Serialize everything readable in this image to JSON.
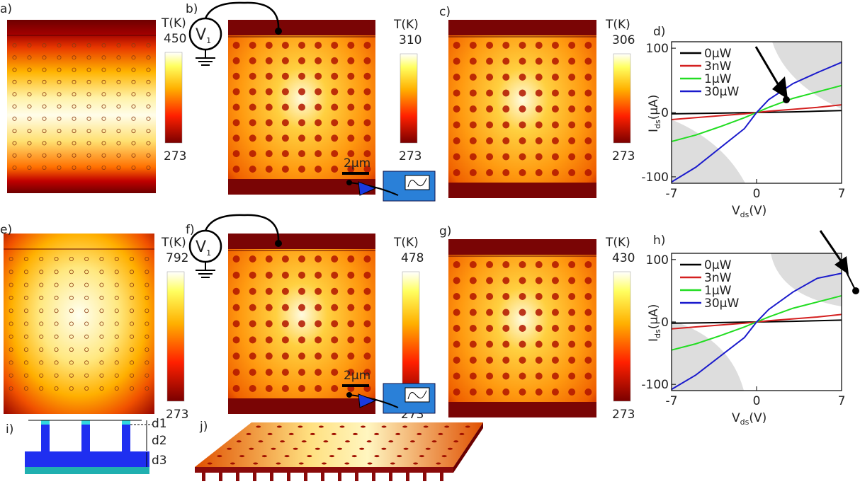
{
  "panels": {
    "labels": [
      "a)",
      "b)",
      "c)",
      "d)",
      "e)",
      "f)",
      "g)",
      "h)",
      "i)",
      "j)"
    ]
  },
  "colorbars": [
    {
      "title": "T(K)",
      "max": 450,
      "min": 273
    },
    {
      "title": "T(K)",
      "max": 310,
      "min": 273
    },
    {
      "title": "T(K)",
      "max": 306,
      "min": 273
    },
    {
      "title": "T(K)",
      "max": 792,
      "min": 273
    },
    {
      "title": "T(K)",
      "max": 478,
      "min": 273
    },
    {
      "title": "T(K)",
      "max": 430,
      "min": 273
    }
  ],
  "circuit": {
    "source": "V",
    "source_sub": "1",
    "scale_bar": "2μm"
  },
  "diagram": {
    "labels": [
      "d1",
      "d2",
      "d3"
    ]
  },
  "chart_data": [
    {
      "type": "line",
      "x": [
        -7,
        -5,
        -3,
        -1,
        0,
        1,
        3,
        5,
        7
      ],
      "series": [
        {
          "name": "0μW",
          "color": "#000000",
          "values": [
            -2,
            -1.5,
            -1,
            -0.3,
            0,
            0.3,
            1,
            2,
            3
          ]
        },
        {
          "name": "3nW",
          "color": "#d42020",
          "values": [
            -11,
            -8,
            -5,
            -2,
            0,
            2,
            5,
            8,
            12
          ]
        },
        {
          "name": "1μW",
          "color": "#22dd22",
          "values": [
            -45,
            -35,
            -22,
            -8,
            0,
            8,
            22,
            32,
            42
          ]
        },
        {
          "name": "30μW",
          "color": "#1a1acc",
          "values": [
            -108,
            -85,
            -55,
            -25,
            0,
            20,
            45,
            62,
            78
          ]
        }
      ],
      "xlim": [
        -7,
        7
      ],
      "xticks": [
        -7,
        0,
        7
      ],
      "ylim": [
        -110,
        110
      ],
      "yticks": [
        -100,
        0,
        100
      ],
      "x_label": {
        "main": "V",
        "sub": "ds",
        "unit": "(V)"
      },
      "y_label": {
        "main": "I",
        "sub": "ds",
        "unit": "(μA)"
      }
    },
    {
      "type": "line",
      "x": [
        -7,
        -5,
        -3,
        -1,
        0,
        1,
        3,
        5,
        7
      ],
      "series": [
        {
          "name": "0μW",
          "color": "#000000",
          "values": [
            -2,
            -1.5,
            -1,
            -0.3,
            0,
            0.3,
            1,
            2,
            3
          ]
        },
        {
          "name": "3nW",
          "color": "#d42020",
          "values": [
            -11,
            -8,
            -5,
            -2,
            0,
            2,
            5,
            8,
            12
          ]
        },
        {
          "name": "1μW",
          "color": "#22dd22",
          "values": [
            -45,
            -35,
            -22,
            -8,
            0,
            8,
            22,
            32,
            42
          ]
        },
        {
          "name": "30μW",
          "color": "#1a1acc",
          "values": [
            -108,
            -85,
            -55,
            -25,
            0,
            20,
            48,
            70,
            78
          ]
        }
      ],
      "xlim": [
        -7,
        7
      ],
      "xticks": [
        -7,
        0,
        7
      ],
      "ylim": [
        -110,
        110
      ],
      "yticks": [
        -100,
        0,
        100
      ],
      "x_label": {
        "main": "V",
        "sub": "ds",
        "unit": "(V)"
      },
      "y_label": {
        "main": "I",
        "sub": "ds",
        "unit": "(μA)"
      }
    }
  ]
}
